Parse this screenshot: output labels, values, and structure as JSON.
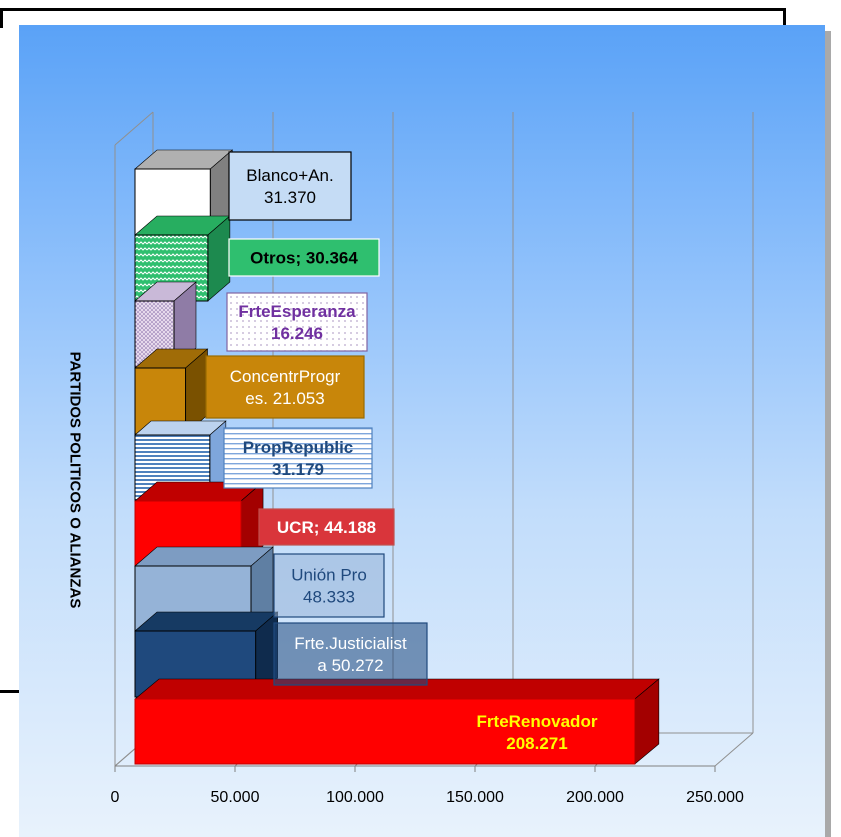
{
  "chart_data": {
    "type": "bar",
    "orientation": "horizontal",
    "style": "3d-stacked-blocks",
    "title": "",
    "xlabel": "",
    "ylabel": "PARTIDOS POLITICOS O ALIANZAS",
    "xlim": [
      0,
      250000
    ],
    "xticks": [
      "0",
      "50.000",
      "100.000",
      "150.000",
      "200.000",
      "250.000"
    ],
    "grid": "vertical",
    "legend": "none",
    "bars": [
      {
        "label": [
          "FrteRenovador",
          "208.271"
        ],
        "value": 208271,
        "color": "#ff0000"
      },
      {
        "label": [
          "Frte.Justicialist",
          "a 50.272"
        ],
        "value": 50272,
        "color": "#1f497d"
      },
      {
        "label": [
          "Unión Pro",
          "48.333"
        ],
        "value": 48333,
        "color": "#95b3d7"
      },
      {
        "label": [
          "UCR; 44.188"
        ],
        "value": 44188,
        "color": "#ff0000"
      },
      {
        "label": [
          "PropRepublic",
          "31.179"
        ],
        "value": 31179,
        "color": "#ffffff"
      },
      {
        "label": [
          "ConcentrProgr",
          "es. 21.053"
        ],
        "value": 21053,
        "color": "#c8860a"
      },
      {
        "label": [
          "FrteEsperanza",
          "16.246"
        ],
        "value": 16246,
        "color": "#e6d9ec"
      },
      {
        "label": [
          "Otros; 30.364"
        ],
        "value": 30364,
        "color": "#3fd07f"
      },
      {
        "label": [
          "Blanco+An.",
          "31.370"
        ],
        "value": 31370,
        "color": "#ffffff"
      }
    ]
  }
}
